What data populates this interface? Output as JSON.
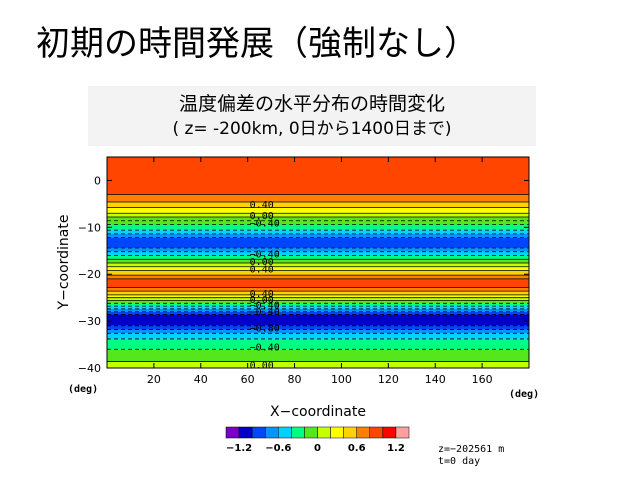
{
  "slide": {
    "title": "初期の時間発展（強制なし）",
    "subtitle_line1": "温度偏差の水平分布の時間変化",
    "subtitle_line2": "( z= -200km, 0日から1400日まで)"
  },
  "info": {
    "z_text": "z=−202561 m",
    "t_text": "t=0 day"
  },
  "chart_data": {
    "type": "heatmap",
    "title": "",
    "xlabel": "X−coordinate",
    "ylabel": "Y−coordinate",
    "x_unit": "(deg)",
    "y_unit": "(deg)",
    "xlim": [
      0,
      180
    ],
    "ylim": [
      -40,
      5
    ],
    "x_ticks": [
      20,
      40,
      60,
      80,
      100,
      120,
      140,
      160
    ],
    "y_ticks": [
      0,
      -10,
      -20,
      -30,
      -40
    ],
    "bands": [
      {
        "y0": 5.0,
        "y1": -3.0,
        "color": "#ff4500"
      },
      {
        "y0": -3.0,
        "y1": -4.6,
        "color": "#ff7f00"
      },
      {
        "y0": -4.6,
        "y1": -5.8,
        "color": "#ffd200"
      },
      {
        "y0": -5.8,
        "y1": -7.0,
        "color": "#ffff00"
      },
      {
        "y0": -7.0,
        "y1": -7.8,
        "color": "#c8ff00"
      },
      {
        "y0": -7.8,
        "y1": -9.4,
        "color": "#55e61e"
      },
      {
        "y0": -9.4,
        "y1": -10.6,
        "color": "#00ff80"
      },
      {
        "y0": -10.6,
        "y1": -11.4,
        "color": "#00d2ff"
      },
      {
        "y0": -11.4,
        "y1": -12.2,
        "color": "#0096ff"
      },
      {
        "y0": -12.2,
        "y1": -14.4,
        "color": "#0046ff"
      },
      {
        "y0": -14.4,
        "y1": -15.2,
        "color": "#0096ff"
      },
      {
        "y0": -15.2,
        "y1": -16.0,
        "color": "#00d2ff"
      },
      {
        "y0": -16.0,
        "y1": -16.8,
        "color": "#00ff80"
      },
      {
        "y0": -16.8,
        "y1": -17.6,
        "color": "#55e61e"
      },
      {
        "y0": -17.6,
        "y1": -18.4,
        "color": "#c8ff00"
      },
      {
        "y0": -18.4,
        "y1": -19.2,
        "color": "#ffff00"
      },
      {
        "y0": -19.2,
        "y1": -20.2,
        "color": "#ffd200"
      },
      {
        "y0": -20.2,
        "y1": -21.0,
        "color": "#ff7f00"
      },
      {
        "y0": -21.0,
        "y1": -22.8,
        "color": "#ff4500"
      },
      {
        "y0": -22.8,
        "y1": -23.6,
        "color": "#ff7f00"
      },
      {
        "y0": -23.6,
        "y1": -24.4,
        "color": "#ffd200"
      },
      {
        "y0": -24.4,
        "y1": -25.0,
        "color": "#ffff00"
      },
      {
        "y0": -25.0,
        "y1": -25.6,
        "color": "#c8ff00"
      },
      {
        "y0": -25.6,
        "y1": -26.2,
        "color": "#55e61e"
      },
      {
        "y0": -26.2,
        "y1": -26.8,
        "color": "#00ff80"
      },
      {
        "y0": -26.8,
        "y1": -27.4,
        "color": "#00d2ff"
      },
      {
        "y0": -27.4,
        "y1": -28.0,
        "color": "#0096ff"
      },
      {
        "y0": -28.0,
        "y1": -28.6,
        "color": "#0046ff"
      },
      {
        "y0": -28.6,
        "y1": -31.0,
        "color": "#0000c8"
      },
      {
        "y0": -31.0,
        "y1": -31.8,
        "color": "#0046ff"
      },
      {
        "y0": -31.8,
        "y1": -32.6,
        "color": "#0096ff"
      },
      {
        "y0": -32.6,
        "y1": -33.8,
        "color": "#00d2ff"
      },
      {
        "y0": -33.8,
        "y1": -36.0,
        "color": "#00ff80"
      },
      {
        "y0": -36.0,
        "y1": -38.6,
        "color": "#55e61e"
      },
      {
        "y0": -38.6,
        "y1": -40.0,
        "color": "#c8ff00"
      }
    ],
    "contours": [
      {
        "y": -3.0,
        "style": "solid"
      },
      {
        "y": -4.6,
        "style": "solid"
      },
      {
        "y": -5.8,
        "style": "solid"
      },
      {
        "y": -7.0,
        "style": "solid"
      },
      {
        "y": -7.8,
        "style": "solid"
      },
      {
        "y": -8.6,
        "style": "dashed"
      },
      {
        "y": -9.4,
        "style": "dashed"
      },
      {
        "y": -10.6,
        "style": "dashed"
      },
      {
        "y": -11.4,
        "style": "dashed"
      },
      {
        "y": -12.2,
        "style": "dashed"
      },
      {
        "y": -14.4,
        "style": "dashed"
      },
      {
        "y": -15.2,
        "style": "dashed"
      },
      {
        "y": -16.0,
        "style": "dashed"
      },
      {
        "y": -16.8,
        "style": "solid"
      },
      {
        "y": -17.6,
        "style": "solid"
      },
      {
        "y": -18.4,
        "style": "solid"
      },
      {
        "y": -19.2,
        "style": "solid"
      },
      {
        "y": -20.2,
        "style": "solid"
      },
      {
        "y": -21.0,
        "style": "solid"
      },
      {
        "y": -22.8,
        "style": "solid"
      },
      {
        "y": -23.6,
        "style": "solid"
      },
      {
        "y": -24.4,
        "style": "solid"
      },
      {
        "y": -25.0,
        "style": "solid"
      },
      {
        "y": -25.6,
        "style": "solid"
      },
      {
        "y": -26.2,
        "style": "dashed"
      },
      {
        "y": -26.8,
        "style": "dashed"
      },
      {
        "y": -27.4,
        "style": "dashed"
      },
      {
        "y": -28.0,
        "style": "dashed"
      },
      {
        "y": -28.6,
        "style": "dashed"
      },
      {
        "y": -31.0,
        "style": "dashed"
      },
      {
        "y": -31.8,
        "style": "dashed"
      },
      {
        "y": -32.6,
        "style": "dashed"
      },
      {
        "y": -33.8,
        "style": "dashed"
      },
      {
        "y": -36.0,
        "style": "dashed"
      },
      {
        "y": -38.6,
        "style": "solid"
      }
    ],
    "contour_labels": [
      {
        "y": -5.0,
        "text": "0.40"
      },
      {
        "y": -7.4,
        "text": "0.00"
      },
      {
        "y": -9.0,
        "text": "−0.40"
      },
      {
        "y": -15.6,
        "text": "−0.40"
      },
      {
        "y": -17.2,
        "text": "0.00"
      },
      {
        "y": -18.8,
        "text": "0.40"
      },
      {
        "y": -24.0,
        "text": "0.40"
      },
      {
        "y": -25.3,
        "text": "0.00"
      },
      {
        "y": -26.5,
        "text": "−0.40"
      },
      {
        "y": -27.8,
        "text": "−0.40"
      },
      {
        "y": -31.4,
        "text": "−0.80"
      },
      {
        "y": -35.4,
        "text": "−0.40"
      },
      {
        "y": -39.3,
        "text": "0.00"
      }
    ],
    "colorbar": {
      "colors": [
        "#7b00c8",
        "#0000c8",
        "#0046ff",
        "#0096ff",
        "#00d2ff",
        "#00ff80",
        "#55e61e",
        "#c8ff00",
        "#ffff00",
        "#ffd200",
        "#ff7f00",
        "#ff4500",
        "#ff0000",
        "#ffa0a0"
      ],
      "tick_labels": [
        "−1.2",
        "−0.6",
        "0",
        "0.6",
        "1.2"
      ],
      "ticks": [
        -1.2,
        -0.6,
        0,
        0.6,
        1.2
      ],
      "range": [
        -1.4,
        1.4
      ]
    }
  }
}
